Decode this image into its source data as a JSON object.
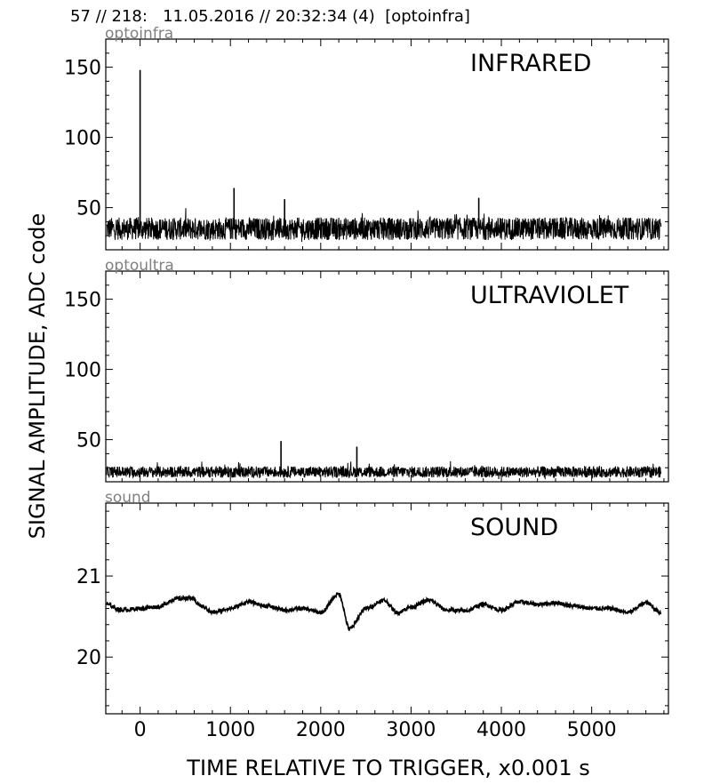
{
  "header": "57 // 218:   11.05.2016 // 20:32:34 (4)  [optoinfra]",
  "ylabel": "SIGNAL AMPLITUDE,  ADC code",
  "xlabel": "TIME RELATIVE TO TRIGGER,   x0.001 s",
  "chart_data": [
    {
      "type": "line",
      "channel": "optoinfra",
      "title": "INFRARED",
      "xlim": [
        -380,
        5850
      ],
      "ylim": [
        20,
        170
      ],
      "xticks": [
        0,
        1000,
        2000,
        3000,
        4000,
        5000
      ],
      "yticks": [
        50,
        100,
        150
      ],
      "baseline": 35,
      "noise": 8,
      "spikes": [
        {
          "x": 0,
          "y": 148
        },
        {
          "x": 1040,
          "y": 64
        },
        {
          "x": 3750,
          "y": 57
        },
        {
          "x": 1600,
          "y": 56
        }
      ],
      "x_end": 5770
    },
    {
      "type": "line",
      "channel": "optoultra",
      "title": "ULTRAVIOLET",
      "xlim": [
        -380,
        5850
      ],
      "ylim": [
        20,
        170
      ],
      "xticks": [
        0,
        1000,
        2000,
        3000,
        4000,
        5000
      ],
      "yticks": [
        50,
        100,
        150
      ],
      "baseline": 27,
      "noise": 4,
      "spikes": [
        {
          "x": 1560,
          "y": 49
        },
        {
          "x": 2400,
          "y": 45
        }
      ],
      "x_end": 5770
    },
    {
      "type": "line",
      "channel": "sound",
      "title": "SOUND",
      "xlim": [
        -380,
        5850
      ],
      "ylim": [
        19.3,
        21.9
      ],
      "xticks": [
        0,
        1000,
        2000,
        3000,
        4000,
        5000
      ],
      "yticks": [
        20,
        21
      ],
      "baseline": 20.62,
      "x_end": 5770,
      "wave": [
        {
          "x": -380,
          "y": 20.65
        },
        {
          "x": -200,
          "y": 20.58
        },
        {
          "x": 0,
          "y": 20.6
        },
        {
          "x": 200,
          "y": 20.62
        },
        {
          "x": 400,
          "y": 20.72
        },
        {
          "x": 550,
          "y": 20.73
        },
        {
          "x": 700,
          "y": 20.62
        },
        {
          "x": 800,
          "y": 20.55
        },
        {
          "x": 1000,
          "y": 20.6
        },
        {
          "x": 1200,
          "y": 20.68
        },
        {
          "x": 1400,
          "y": 20.63
        },
        {
          "x": 1600,
          "y": 20.58
        },
        {
          "x": 1800,
          "y": 20.6
        },
        {
          "x": 2000,
          "y": 20.55
        },
        {
          "x": 2200,
          "y": 20.78
        },
        {
          "x": 2320,
          "y": 20.35
        },
        {
          "x": 2500,
          "y": 20.6
        },
        {
          "x": 2700,
          "y": 20.7
        },
        {
          "x": 2850,
          "y": 20.55
        },
        {
          "x": 3000,
          "y": 20.62
        },
        {
          "x": 3200,
          "y": 20.7
        },
        {
          "x": 3400,
          "y": 20.58
        },
        {
          "x": 3600,
          "y": 20.57
        },
        {
          "x": 3800,
          "y": 20.65
        },
        {
          "x": 4000,
          "y": 20.58
        },
        {
          "x": 4200,
          "y": 20.68
        },
        {
          "x": 4400,
          "y": 20.65
        },
        {
          "x": 4600,
          "y": 20.67
        },
        {
          "x": 4800,
          "y": 20.63
        },
        {
          "x": 5000,
          "y": 20.6
        },
        {
          "x": 5200,
          "y": 20.6
        },
        {
          "x": 5400,
          "y": 20.55
        },
        {
          "x": 5600,
          "y": 20.67
        },
        {
          "x": 5770,
          "y": 20.55
        }
      ]
    }
  ]
}
